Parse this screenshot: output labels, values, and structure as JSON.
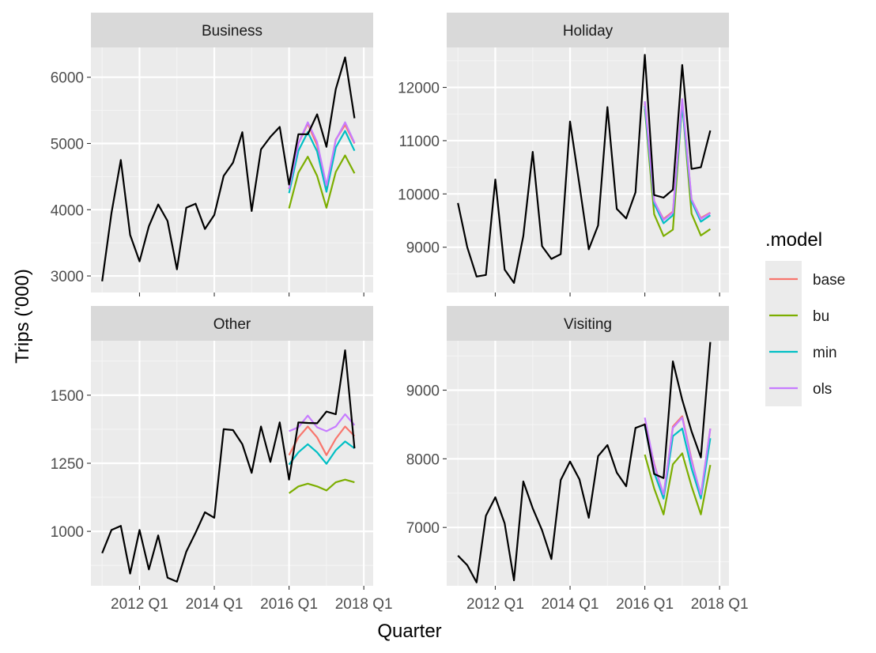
{
  "chart_data": {
    "type": "line",
    "xlabel": "Quarter",
    "ylabel": "Trips ('000)",
    "x_ticks": [
      "2012 Q1",
      "2014 Q1",
      "2016 Q1",
      "2018 Q1"
    ],
    "x_tick_values": [
      2012.0,
      2014.0,
      2016.0,
      2018.0
    ],
    "x_range": [
      2010.7,
      2018.25
    ],
    "legend": {
      "title": ".model",
      "position": "right",
      "entries": [
        {
          "name": "base",
          "color": "#F8766D"
        },
        {
          "name": "bu",
          "color": "#7CAE00"
        },
        {
          "name": "min",
          "color": "#00BFC4"
        },
        {
          "name": "ols",
          "color": "#C77CFF"
        }
      ]
    },
    "panels": [
      {
        "title": "Business",
        "ylim": [
          2750,
          6450
        ],
        "y_ticks": [
          3000,
          4000,
          5000,
          6000
        ],
        "actual": {
          "x": [
            2011.0,
            2011.25,
            2011.5,
            2011.75,
            2012.0,
            2012.25,
            2012.5,
            2012.75,
            2013.0,
            2013.25,
            2013.5,
            2013.75,
            2014.0,
            2014.25,
            2014.5,
            2014.75,
            2015.0,
            2015.25,
            2015.5,
            2015.75,
            2016.0,
            2016.25,
            2016.5,
            2016.75,
            2017.0,
            2017.25,
            2017.5,
            2017.75
          ],
          "y": [
            2920,
            3950,
            4750,
            3620,
            3220,
            3750,
            4080,
            3830,
            3100,
            4030,
            4090,
            3710,
            3920,
            4510,
            4710,
            5170,
            3980,
            4910,
            5100,
            5250,
            4380,
            5140,
            5140,
            5440,
            4950,
            5820,
            6300,
            5380
          ]
        },
        "forecast_x": [
          2016.0,
          2016.25,
          2016.5,
          2016.75,
          2017.0,
          2017.25,
          2017.5,
          2017.75
        ],
        "forecasts": [
          {
            "name": "base",
            "values": [
              4310,
              5000,
              5300,
              4970,
              4330,
              5060,
              5280,
              5000
            ]
          },
          {
            "name": "bu",
            "values": [
              4020,
              4560,
              4800,
              4510,
              4030,
              4570,
              4820,
              4550
            ]
          },
          {
            "name": "min",
            "values": [
              4250,
              4890,
              5170,
              4880,
              4270,
              4940,
              5190,
              4890
            ]
          },
          {
            "name": "ols",
            "values": [
              4320,
              5000,
              5320,
              5020,
              4370,
              5050,
              5320,
              5010
            ]
          }
        ]
      },
      {
        "title": "Holiday",
        "ylim": [
          8150,
          12750
        ],
        "y_ticks": [
          9000,
          10000,
          11000,
          12000
        ],
        "actual": {
          "x": [
            2011.0,
            2011.25,
            2011.5,
            2011.75,
            2012.0,
            2012.25,
            2012.5,
            2012.75,
            2013.0,
            2013.25,
            2013.5,
            2013.75,
            2014.0,
            2014.25,
            2014.5,
            2014.75,
            2015.0,
            2015.25,
            2015.5,
            2015.75,
            2016.0,
            2016.25,
            2016.5,
            2016.75,
            2017.0,
            2017.25,
            2017.5,
            2017.75
          ],
          "y": [
            9830,
            9000,
            8450,
            8480,
            10270,
            8580,
            8330,
            9210,
            10790,
            9020,
            8780,
            8870,
            11360,
            10170,
            8960,
            9410,
            11630,
            9720,
            9540,
            10030,
            12610,
            9980,
            9930,
            10080,
            12420,
            10470,
            10500,
            11190
          ]
        },
        "forecast_x": [
          2016.0,
          2016.25,
          2016.5,
          2016.75,
          2017.0,
          2017.25,
          2017.5,
          2017.75
        ],
        "forecasts": [
          {
            "name": "base",
            "values": [
              11700,
              9850,
              9530,
              9670,
              11720,
              9890,
              9550,
              9650
            ]
          },
          {
            "name": "bu",
            "values": [
              11600,
              9620,
              9210,
              9330,
              11700,
              9630,
              9220,
              9340
            ]
          },
          {
            "name": "min",
            "values": [
              11650,
              9820,
              9450,
              9600,
              11680,
              9860,
              9480,
              9600
            ]
          },
          {
            "name": "ols",
            "values": [
              11740,
              9870,
              9510,
              9650,
              11780,
              9900,
              9530,
              9640
            ]
          }
        ]
      },
      {
        "title": "Other",
        "ylim": [
          800,
          1700
        ],
        "y_ticks": [
          1000,
          1250,
          1500
        ],
        "actual": {
          "x": [
            2011.0,
            2011.25,
            2011.5,
            2011.75,
            2012.0,
            2012.25,
            2012.5,
            2012.75,
            2013.0,
            2013.25,
            2013.5,
            2013.75,
            2014.0,
            2014.25,
            2014.5,
            2014.75,
            2015.0,
            2015.25,
            2015.5,
            2015.75,
            2016.0,
            2016.25,
            2016.5,
            2016.75,
            2017.0,
            2017.25,
            2017.5,
            2017.75
          ],
          "y": [
            920,
            1005,
            1020,
            845,
            1005,
            860,
            985,
            830,
            815,
            925,
            995,
            1070,
            1050,
            1375,
            1372,
            1320,
            1215,
            1385,
            1255,
            1400,
            1190,
            1400,
            1398,
            1397,
            1440,
            1430,
            1665,
            1305
          ]
        },
        "forecast_x": [
          2016.0,
          2016.25,
          2016.5,
          2016.75,
          2017.0,
          2017.25,
          2017.5,
          2017.75
        ],
        "forecasts": [
          {
            "name": "base",
            "values": [
              1280,
              1345,
              1385,
              1345,
              1280,
              1340,
              1385,
              1350
            ]
          },
          {
            "name": "bu",
            "values": [
              1140,
              1165,
              1175,
              1165,
              1150,
              1180,
              1190,
              1180
            ]
          },
          {
            "name": "min",
            "values": [
              1245,
              1290,
              1320,
              1290,
              1248,
              1298,
              1330,
              1305
            ]
          },
          {
            "name": "ols",
            "values": [
              1368,
              1382,
              1425,
              1382,
              1368,
              1385,
              1430,
              1390
            ]
          }
        ]
      },
      {
        "title": "Visiting",
        "ylim": [
          6150,
          9720
        ],
        "y_ticks": [
          7000,
          8000,
          9000
        ],
        "actual": {
          "x": [
            2011.0,
            2011.25,
            2011.5,
            2011.75,
            2012.0,
            2012.25,
            2012.5,
            2012.75,
            2013.0,
            2013.25,
            2013.5,
            2013.75,
            2014.0,
            2014.25,
            2014.5,
            2014.75,
            2015.0,
            2015.25,
            2015.5,
            2015.75,
            2016.0,
            2016.25,
            2016.5,
            2016.75,
            2017.0,
            2017.25,
            2017.5,
            2017.75
          ],
          "y": [
            6590,
            6450,
            6200,
            7170,
            7440,
            7060,
            6230,
            7670,
            7280,
            6960,
            6540,
            7690,
            7960,
            7700,
            7140,
            8040,
            8200,
            7800,
            7600,
            8450,
            8500,
            7780,
            7720,
            9420,
            8860,
            8400,
            8020,
            9700
          ]
        },
        "forecast_x": [
          2016.0,
          2016.25,
          2016.5,
          2016.75,
          2017.0,
          2017.25,
          2017.5,
          2017.75
        ],
        "forecasts": [
          {
            "name": "base",
            "values": [
              8520,
              7930,
              7460,
              8470,
              8620,
              7990,
              7450,
              8440
            ]
          },
          {
            "name": "bu",
            "values": [
              8060,
              7570,
              7190,
              7920,
              8080,
              7600,
              7190,
              7910
            ]
          },
          {
            "name": "min",
            "values": [
              8480,
              7800,
              7420,
              8330,
              8440,
              7860,
              7420,
              8300
            ]
          },
          {
            "name": "ols",
            "values": [
              8600,
              7910,
              7480,
              8450,
              8600,
              7970,
              7480,
              8440
            ]
          }
        ]
      }
    ]
  }
}
